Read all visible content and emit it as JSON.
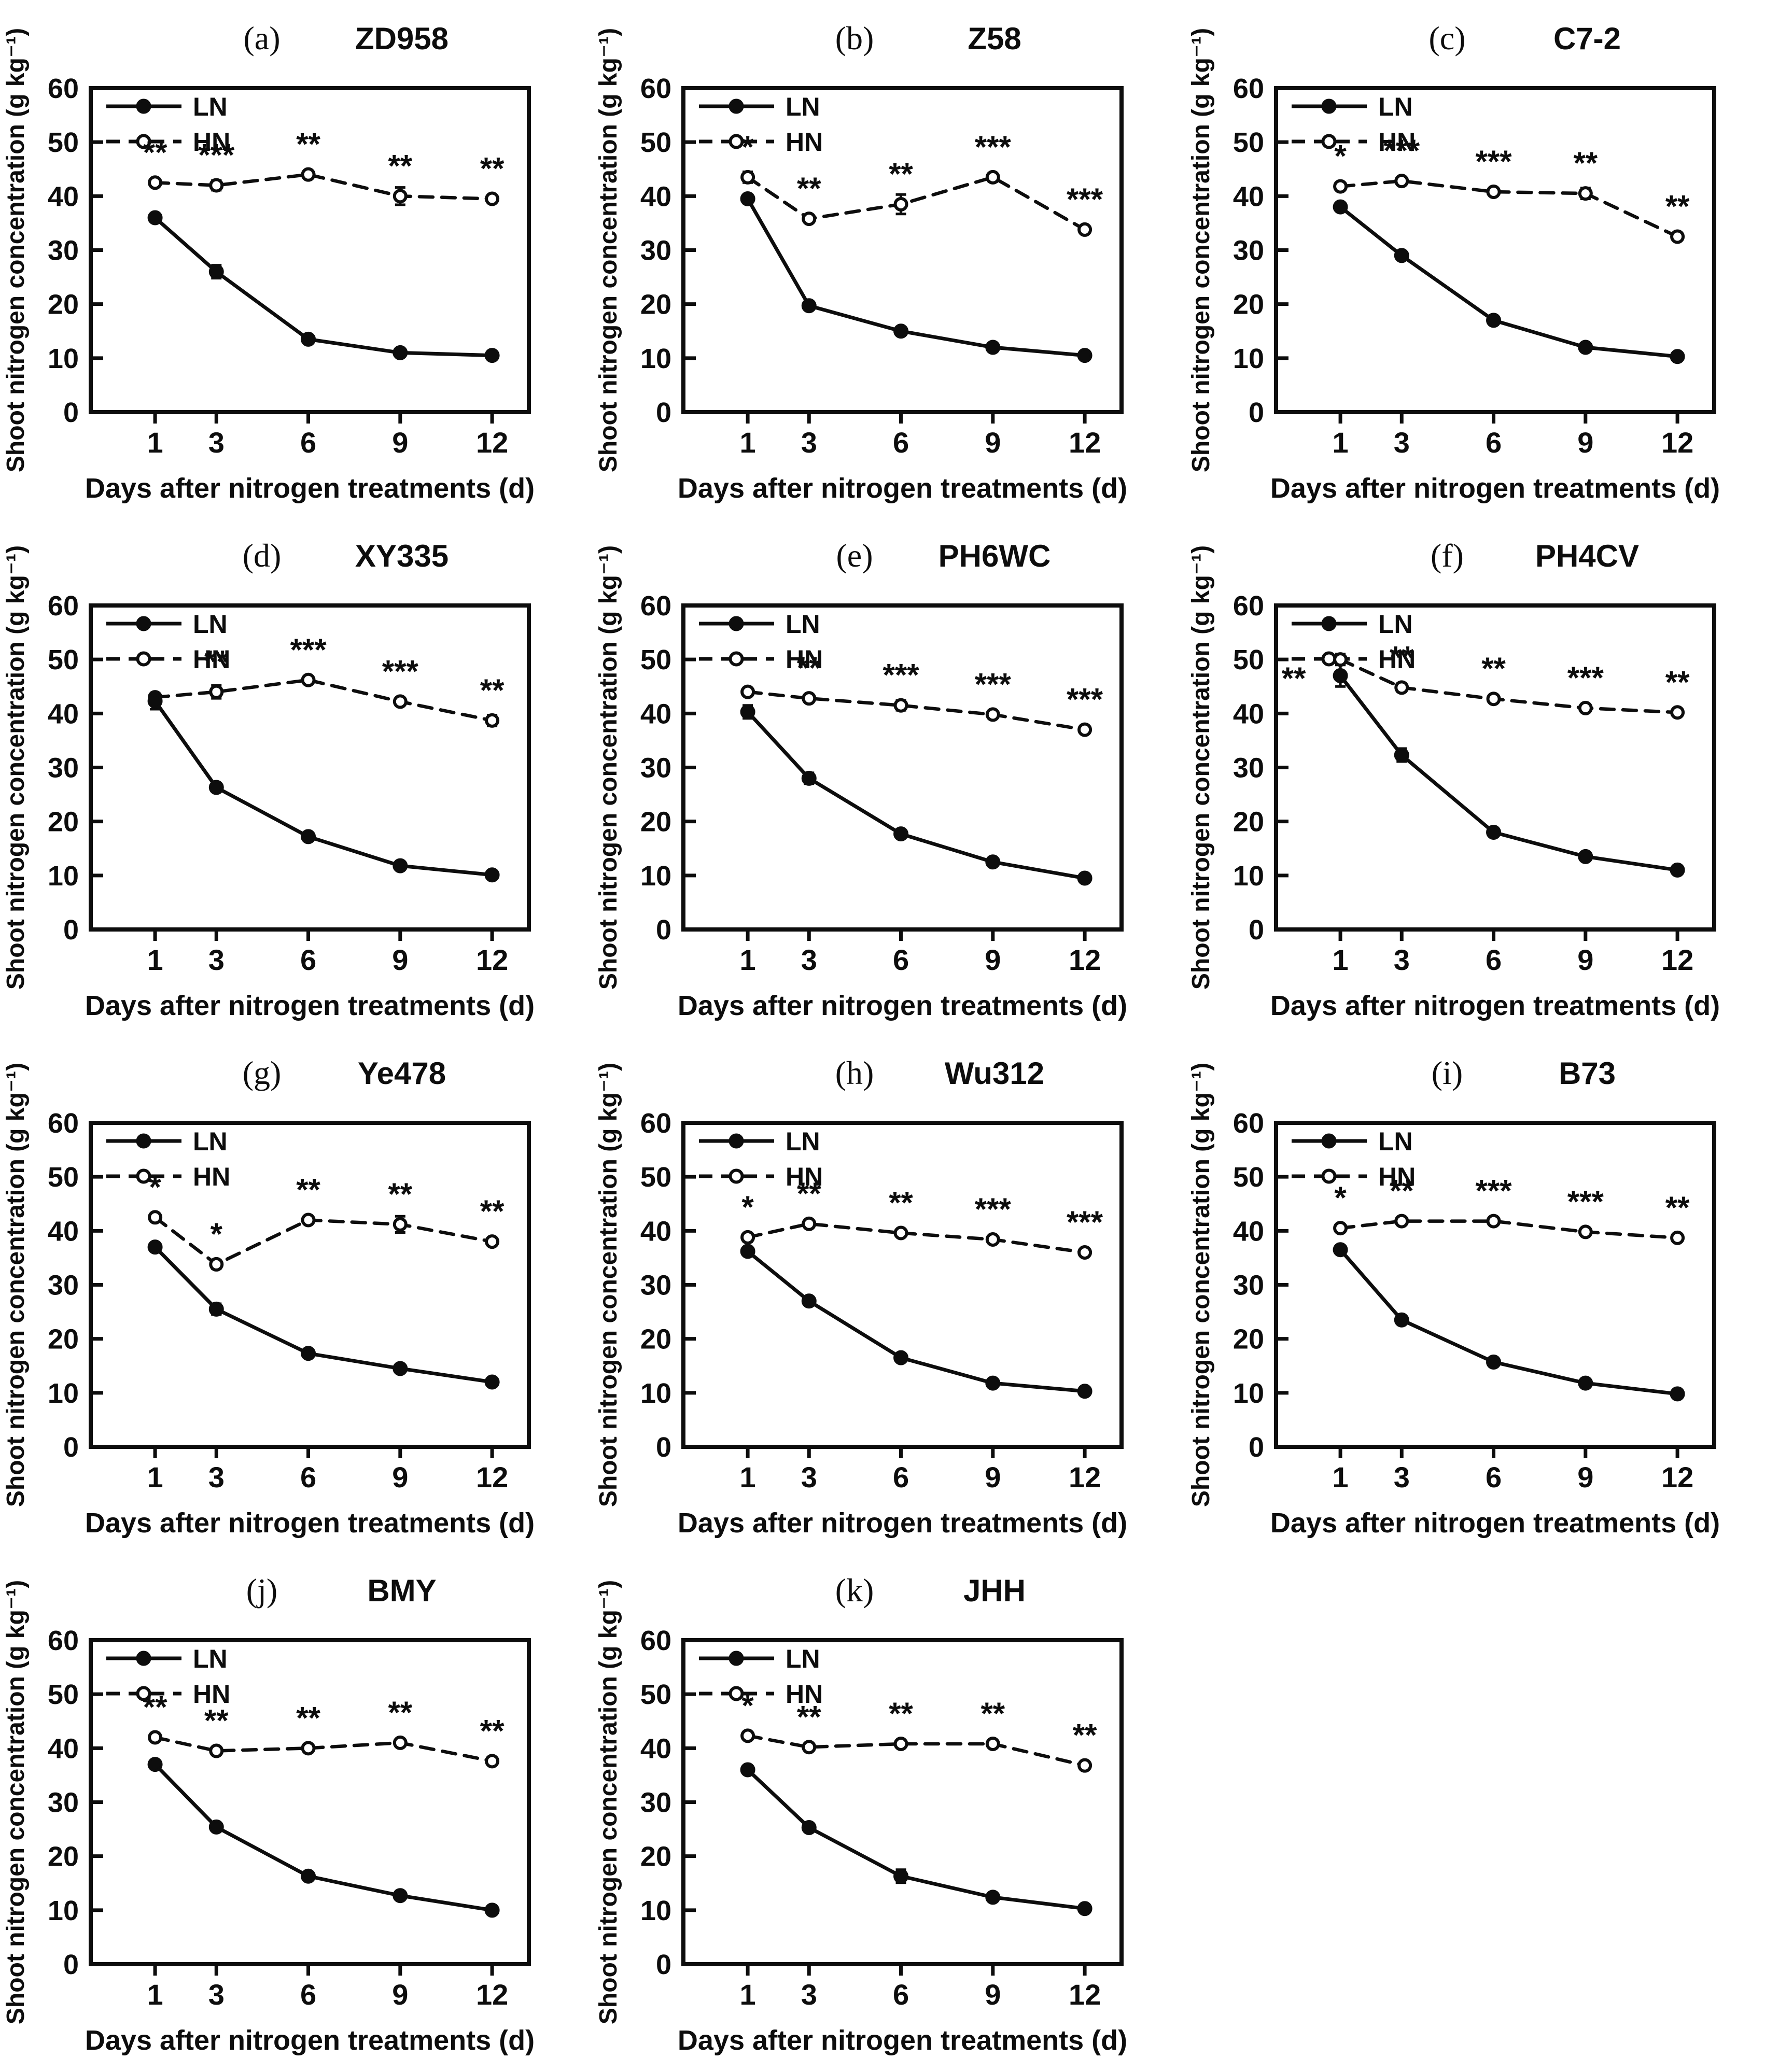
{
  "figure": {
    "background": "#ffffff",
    "ink_color": "#0d0d0d",
    "ylabel": "Shoot nitrogen concentration (g kg⁻¹)",
    "xlabel": "Days after nitrogen treatments (d)",
    "x_days": [
      1,
      3,
      6,
      9,
      12
    ],
    "legend": [
      {
        "label": "LN",
        "line": "solid",
        "marker": "filled-circle"
      },
      {
        "label": "HN",
        "line": "dashed",
        "marker": "open-circle"
      }
    ],
    "legend_position": "top-left",
    "grid": "off"
  },
  "chart_data": [
    {
      "type": "line",
      "panel_letter": "(a)",
      "genotype": "ZD958",
      "x": [
        1,
        3,
        6,
        9,
        12
      ],
      "xlabel": "Days after nitrogen treatments (d)",
      "ylabel": "Shoot nitrogen concentration (g kg⁻¹)",
      "ylim": [
        0,
        60
      ],
      "yticks": [
        0,
        10,
        20,
        30,
        40,
        50,
        60
      ],
      "series": [
        {
          "name": "LN",
          "line": "solid",
          "marker": "filled-circle",
          "values": [
            36,
            26,
            13.5,
            11,
            10.5
          ],
          "err": [
            0.6,
            1.2,
            0.6,
            0.5,
            0.4
          ]
        },
        {
          "name": "HN",
          "line": "dashed",
          "marker": "open-circle",
          "values": [
            42.5,
            42,
            44,
            40,
            39.5
          ],
          "err": [
            0.6,
            0.9,
            0.7,
            1.6,
            0.5
          ]
        }
      ],
      "significance": [
        "**",
        "***",
        "**",
        "**",
        "**"
      ]
    },
    {
      "type": "line",
      "panel_letter": "(b)",
      "genotype": "Z58",
      "x": [
        1,
        3,
        6,
        9,
        12
      ],
      "xlabel": "Days after nitrogen treatments (d)",
      "ylabel": "Shoot nitrogen concentration (g kg⁻¹)",
      "ylim": [
        0,
        60
      ],
      "yticks": [
        0,
        10,
        20,
        30,
        40,
        50,
        60
      ],
      "series": [
        {
          "name": "LN",
          "line": "solid",
          "marker": "filled-circle",
          "values": [
            39.5,
            19.7,
            15,
            12,
            10.5
          ],
          "err": [
            0.8,
            0.5,
            0.5,
            0.5,
            0.4
          ]
        },
        {
          "name": "HN",
          "line": "dashed",
          "marker": "open-circle",
          "values": [
            43.5,
            35.8,
            38.5,
            43.5,
            33.8
          ],
          "err": [
            1.0,
            0.6,
            1.8,
            0.8,
            0.5
          ]
        }
      ],
      "significance": [
        "*",
        "**",
        "**",
        "***",
        "***"
      ]
    },
    {
      "type": "line",
      "panel_letter": "(c)",
      "genotype": "C7-2",
      "x": [
        1,
        3,
        6,
        9,
        12
      ],
      "xlabel": "Days after nitrogen treatments (d)",
      "ylabel": "Shoot nitrogen concentration (g kg⁻¹)",
      "ylim": [
        0,
        60
      ],
      "yticks": [
        0,
        10,
        20,
        30,
        40,
        50,
        60
      ],
      "series": [
        {
          "name": "LN",
          "line": "solid",
          "marker": "filled-circle",
          "values": [
            38,
            29,
            17,
            12,
            10.3
          ],
          "err": [
            0.5,
            0.6,
            0.8,
            0.5,
            0.4
          ]
        },
        {
          "name": "HN",
          "line": "dashed",
          "marker": "open-circle",
          "values": [
            41.8,
            42.8,
            40.8,
            40.5,
            32.5
          ],
          "err": [
            0.6,
            0.6,
            0.6,
            1.0,
            0.5
          ]
        }
      ],
      "significance": [
        "*",
        "***",
        "***",
        "**",
        "**"
      ]
    },
    {
      "type": "line",
      "panel_letter": "(d)",
      "genotype": "XY335",
      "x": [
        1,
        3,
        6,
        9,
        12
      ],
      "xlabel": "Days after nitrogen treatments (d)",
      "ylabel": "Shoot nitrogen concentration (g kg⁻¹)",
      "ylim": [
        0,
        60
      ],
      "yticks": [
        0,
        10,
        20,
        30,
        40,
        50,
        60
      ],
      "series": [
        {
          "name": "LN",
          "line": "solid",
          "marker": "filled-circle",
          "values": [
            42.3,
            26.3,
            17.2,
            11.8,
            10.1
          ],
          "err": [
            1.5,
            0.5,
            0.5,
            0.5,
            0.4
          ]
        },
        {
          "name": "HN",
          "line": "dashed",
          "marker": "open-circle",
          "values": [
            43,
            44,
            46.2,
            42.2,
            38.7
          ],
          "err": [
            0.8,
            1.2,
            0.6,
            0.6,
            1.0
          ]
        }
      ],
      "significance": [
        "",
        "**",
        "***",
        "***",
        "**"
      ]
    },
    {
      "type": "line",
      "panel_letter": "(e)",
      "genotype": "PH6WC",
      "x": [
        1,
        3,
        6,
        9,
        12
      ],
      "xlabel": "Days after nitrogen treatments (d)",
      "ylabel": "Shoot nitrogen concentration (g kg⁻¹)",
      "ylim": [
        0,
        60
      ],
      "yticks": [
        0,
        10,
        20,
        30,
        40,
        50,
        60
      ],
      "series": [
        {
          "name": "LN",
          "line": "solid",
          "marker": "filled-circle",
          "values": [
            40.3,
            28,
            17.7,
            12.5,
            9.5
          ],
          "err": [
            1.2,
            1.0,
            0.5,
            0.5,
            0.4
          ]
        },
        {
          "name": "HN",
          "line": "dashed",
          "marker": "open-circle",
          "values": [
            44,
            42.8,
            41.5,
            39.8,
            37
          ],
          "err": [
            0.6,
            0.5,
            0.9,
            0.5,
            0.5
          ]
        }
      ],
      "significance": [
        "",
        "**",
        "***",
        "***",
        "***"
      ]
    },
    {
      "type": "line",
      "panel_letter": "(f)",
      "genotype": "PH4CV",
      "x": [
        1,
        3,
        6,
        9,
        12
      ],
      "xlabel": "Days after nitrogen treatments (d)",
      "ylabel": "Shoot nitrogen concentration (g kg⁻¹)",
      "ylim": [
        0,
        60
      ],
      "yticks": [
        0,
        10,
        20,
        30,
        40,
        50,
        60
      ],
      "day1_sig_offset_left": true,
      "series": [
        {
          "name": "LN",
          "line": "solid",
          "marker": "filled-circle",
          "values": [
            47,
            32.3,
            18,
            13.5,
            11
          ],
          "err": [
            2.0,
            1.2,
            0.5,
            0.6,
            0.4
          ]
        },
        {
          "name": "HN",
          "line": "dashed",
          "marker": "open-circle",
          "values": [
            50,
            44.8,
            42.7,
            41,
            40.2
          ],
          "err": [
            1.0,
            0.8,
            0.6,
            0.5,
            0.5
          ]
        }
      ],
      "significance": [
        "**",
        "**",
        "**",
        "***",
        "**"
      ]
    },
    {
      "type": "line",
      "panel_letter": "(g)",
      "genotype": "Ye478",
      "x": [
        1,
        3,
        6,
        9,
        12
      ],
      "xlabel": "Days after nitrogen treatments (d)",
      "ylabel": "Shoot nitrogen concentration (g kg⁻¹)",
      "ylim": [
        0,
        60
      ],
      "yticks": [
        0,
        10,
        20,
        30,
        40,
        50,
        60
      ],
      "series": [
        {
          "name": "LN",
          "line": "solid",
          "marker": "filled-circle",
          "values": [
            37,
            25.5,
            17.3,
            14.5,
            12
          ],
          "err": [
            0.5,
            1.0,
            0.5,
            0.6,
            0.5
          ]
        },
        {
          "name": "HN",
          "line": "dashed",
          "marker": "open-circle",
          "values": [
            42.5,
            33.8,
            42,
            41.2,
            38
          ],
          "err": [
            0.7,
            0.8,
            0.6,
            1.5,
            0.5
          ]
        }
      ],
      "significance": [
        "*",
        "*",
        "**",
        "**",
        "**"
      ]
    },
    {
      "type": "line",
      "panel_letter": "(h)",
      "genotype": "Wu312",
      "x": [
        1,
        3,
        6,
        9,
        12
      ],
      "xlabel": "Days after nitrogen treatments (d)",
      "ylabel": "Shoot nitrogen concentration (g kg⁻¹)",
      "ylim": [
        0,
        60
      ],
      "yticks": [
        0,
        10,
        20,
        30,
        40,
        50,
        60
      ],
      "series": [
        {
          "name": "LN",
          "line": "solid",
          "marker": "filled-circle",
          "values": [
            36.2,
            27,
            16.5,
            11.8,
            10.3
          ],
          "err": [
            0.6,
            0.5,
            0.7,
            0.5,
            0.4
          ]
        },
        {
          "name": "HN",
          "line": "dashed",
          "marker": "open-circle",
          "values": [
            38.8,
            41.3,
            39.6,
            38.4,
            36
          ],
          "err": [
            0.8,
            0.7,
            0.6,
            0.5,
            0.6
          ]
        }
      ],
      "significance": [
        "*",
        "**",
        "**",
        "***",
        "***"
      ]
    },
    {
      "type": "line",
      "panel_letter": "(i)",
      "genotype": "B73",
      "x": [
        1,
        3,
        6,
        9,
        12
      ],
      "xlabel": "Days after nitrogen treatments (d)",
      "ylabel": "Shoot nitrogen concentration (g kg⁻¹)",
      "ylim": [
        0,
        60
      ],
      "yticks": [
        0,
        10,
        20,
        30,
        40,
        50,
        60
      ],
      "series": [
        {
          "name": "LN",
          "line": "solid",
          "marker": "filled-circle",
          "values": [
            36.5,
            23.5,
            15.7,
            11.8,
            9.8
          ],
          "err": [
            0.5,
            0.6,
            0.8,
            0.5,
            0.4
          ]
        },
        {
          "name": "HN",
          "line": "dashed",
          "marker": "open-circle",
          "values": [
            40.5,
            41.8,
            41.8,
            39.8,
            38.7
          ],
          "err": [
            0.6,
            0.6,
            0.5,
            0.5,
            0.5
          ]
        }
      ],
      "significance": [
        "*",
        "**",
        "***",
        "***",
        "**"
      ]
    },
    {
      "type": "line",
      "panel_letter": "(j)",
      "genotype": "BMY",
      "x": [
        1,
        3,
        6,
        9,
        12
      ],
      "xlabel": "Days after nitrogen treatments (d)",
      "ylabel": "Shoot nitrogen concentration (g kg⁻¹)",
      "ylim": [
        0,
        60
      ],
      "yticks": [
        0,
        10,
        20,
        30,
        40,
        50,
        60
      ],
      "series": [
        {
          "name": "LN",
          "line": "solid",
          "marker": "filled-circle",
          "values": [
            37,
            25.4,
            16.3,
            12.7,
            10
          ],
          "err": [
            0.5,
            0.5,
            0.5,
            0.8,
            0.4
          ]
        },
        {
          "name": "HN",
          "line": "dashed",
          "marker": "open-circle",
          "values": [
            42,
            39.5,
            40,
            41,
            37.6
          ],
          "err": [
            0.6,
            0.6,
            0.5,
            0.7,
            0.5
          ]
        }
      ],
      "significance": [
        "**",
        "**",
        "**",
        "**",
        "**"
      ]
    },
    {
      "type": "line",
      "panel_letter": "(k)",
      "genotype": "JHH",
      "x": [
        1,
        3,
        6,
        9,
        12
      ],
      "xlabel": "Days after nitrogen treatments (d)",
      "ylabel": "Shoot nitrogen concentration (g kg⁻¹)",
      "ylim": [
        0,
        60
      ],
      "yticks": [
        0,
        10,
        20,
        30,
        40,
        50,
        60
      ],
      "series": [
        {
          "name": "LN",
          "line": "solid",
          "marker": "filled-circle",
          "values": [
            36,
            25.3,
            16.3,
            12.4,
            10.3
          ],
          "err": [
            0.5,
            0.5,
            1.2,
            0.6,
            0.4
          ]
        },
        {
          "name": "HN",
          "line": "dashed",
          "marker": "open-circle",
          "values": [
            42.3,
            40.2,
            40.8,
            40.8,
            36.8
          ],
          "err": [
            0.7,
            0.6,
            0.6,
            0.6,
            0.5
          ]
        }
      ],
      "significance": [
        "*",
        "**",
        "**",
        "**",
        "**"
      ]
    }
  ]
}
